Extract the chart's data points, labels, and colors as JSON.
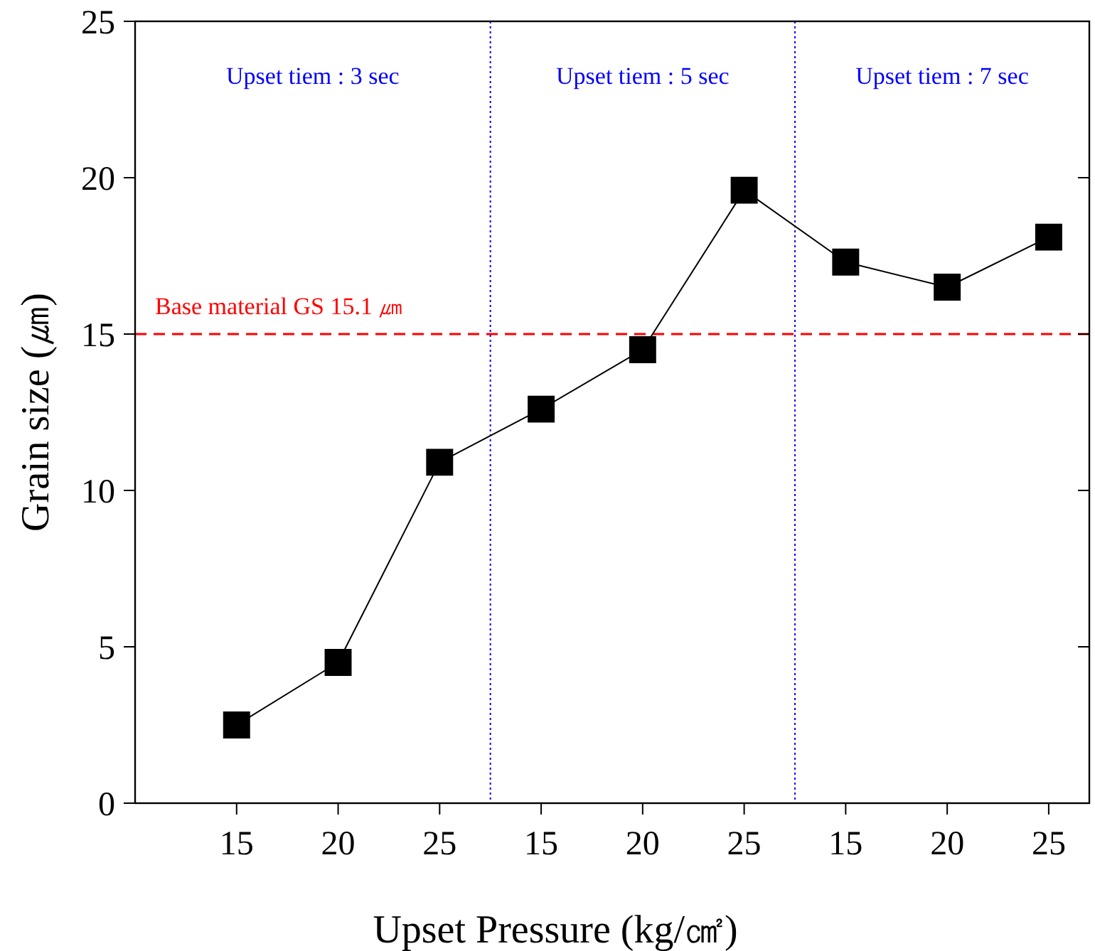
{
  "chart_data": {
    "type": "line",
    "xlabel": "Upset Pressure (kg/㎠)",
    "ylabel": "Grain size (㎛)",
    "categories": [
      "15",
      "20",
      "25",
      "15",
      "20",
      "25",
      "15",
      "20",
      "25"
    ],
    "series": [
      {
        "color": "#000000",
        "values": [
          2.5,
          4.5,
          10.9,
          12.6,
          14.5,
          19.6,
          17.3,
          16.5,
          18.1
        ]
      }
    ],
    "ylim": [
      0,
      25
    ],
    "yticks": [
      0,
      5,
      10,
      15,
      20,
      25
    ],
    "marker": "square",
    "line_style": "solid",
    "grid": false,
    "ref_lines": [
      {
        "axis": "y",
        "value": 15,
        "label": "Base material GS 15.1 ㎛",
        "color": "#ff0000",
        "line_style": "dashed"
      }
    ],
    "annotations": [
      "Upset tiem : 3 sec",
      "Upset tiem : 5 sec",
      "Upset tiem : 7 sec"
    ]
  }
}
